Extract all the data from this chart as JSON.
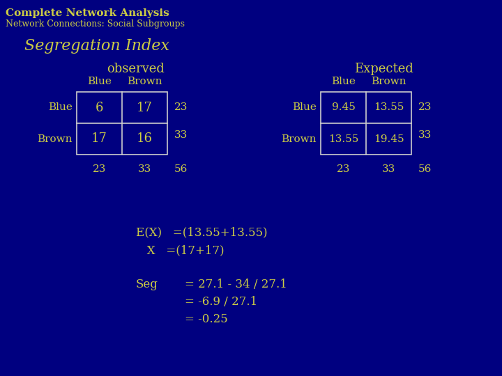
{
  "bg_color": "#000080",
  "title_main": "Complete Network Analysis",
  "title_sub": "Network Connections: Social Subgroups",
  "section_title": "Segregation Index",
  "title_color": "#CCCC44",
  "text_color": "#CCCC44",
  "table_color": "#CCCCCC",
  "observed_label": "observed",
  "expected_label": "Expected",
  "col_blue": "Blue",
  "col_brown": "Brown",
  "row_blue": "Blue",
  "row_brown": "Brown",
  "obs_data": [
    [
      6,
      17
    ],
    [
      17,
      16
    ]
  ],
  "obs_row_totals": [
    23,
    33
  ],
  "obs_col_totals": [
    23,
    33
  ],
  "obs_grand_total": 56,
  "exp_data": [
    [
      9.45,
      13.55
    ],
    [
      13.55,
      19.45
    ]
  ],
  "exp_row_totals": [
    23,
    33
  ],
  "exp_col_totals": [
    23,
    33
  ],
  "exp_grand_total": 56,
  "formula_line1": "E(X)   =(13.55+13.55)",
  "formula_line2": "   X   =(17+17)",
  "seg_label": "Seg",
  "seg_line1": "= 27.1 - 34 / 27.1",
  "seg_line2": "= -6.9 / 27.1",
  "seg_line3": "= -0.25"
}
